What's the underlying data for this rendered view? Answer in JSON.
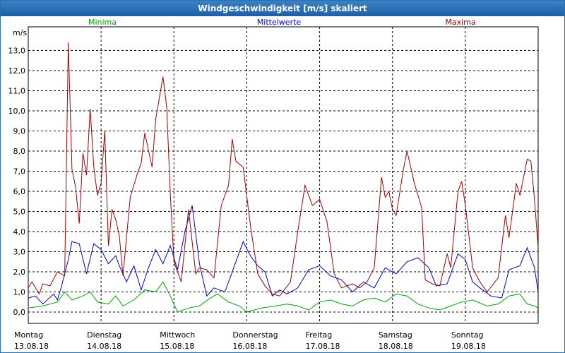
{
  "window": {
    "title": "Windgeschwindigkeit [m/s] skaliert"
  },
  "chart_data": {
    "type": "line",
    "title": "Windgeschwindigkeit [m/s] skaliert",
    "ylabel": "m/s",
    "ylim": [
      -0.5,
      14.0
    ],
    "yticks": [
      "0,0",
      "1,0",
      "2,0",
      "3,0",
      "4,0",
      "5,0",
      "6,0",
      "7,0",
      "8,0",
      "9,0",
      "10,0",
      "11,0",
      "12,0",
      "13,0"
    ],
    "days": [
      {
        "name": "Montag",
        "date": "13.08.18"
      },
      {
        "name": "Dienstag",
        "date": "14.08.18"
      },
      {
        "name": "Mittwoch",
        "date": "15.08.18"
      },
      {
        "name": "Donnerstag",
        "date": "16.08.18"
      },
      {
        "name": "Freitag",
        "date": "17.08.18"
      },
      {
        "name": "Samstag",
        "date": "18.08.18"
      },
      {
        "name": "Sonntag",
        "date": "19.08.18"
      }
    ],
    "xlim": [
      0,
      7.0
    ],
    "series": [
      {
        "name": "Minima",
        "color": "#00a000",
        "points": [
          [
            0.0,
            0.2
          ],
          [
            0.2,
            0.3
          ],
          [
            0.4,
            0.5
          ],
          [
            0.5,
            1.0
          ],
          [
            0.6,
            0.6
          ],
          [
            0.75,
            0.8
          ],
          [
            0.85,
            1.0
          ],
          [
            0.95,
            0.5
          ],
          [
            1.1,
            0.4
          ],
          [
            1.2,
            0.8
          ],
          [
            1.3,
            0.3
          ],
          [
            1.45,
            0.6
          ],
          [
            1.6,
            1.1
          ],
          [
            1.75,
            1.0
          ],
          [
            1.85,
            1.5
          ],
          [
            1.95,
            0.8
          ],
          [
            2.05,
            0.0
          ],
          [
            2.2,
            0.2
          ],
          [
            2.35,
            0.3
          ],
          [
            2.5,
            0.7
          ],
          [
            2.6,
            0.9
          ],
          [
            2.75,
            0.5
          ],
          [
            2.9,
            0.3
          ],
          [
            3.0,
            0.0
          ],
          [
            3.2,
            0.2
          ],
          [
            3.4,
            0.3
          ],
          [
            3.55,
            0.4
          ],
          [
            3.7,
            0.3
          ],
          [
            3.85,
            0.1
          ],
          [
            4.0,
            0.5
          ],
          [
            4.15,
            0.6
          ],
          [
            4.3,
            0.4
          ],
          [
            4.45,
            0.3
          ],
          [
            4.6,
            0.6
          ],
          [
            4.75,
            0.7
          ],
          [
            4.9,
            0.5
          ],
          [
            5.05,
            0.9
          ],
          [
            5.2,
            0.8
          ],
          [
            5.35,
            0.4
          ],
          [
            5.5,
            0.2
          ],
          [
            5.65,
            0.1
          ],
          [
            5.8,
            0.3
          ],
          [
            5.95,
            0.5
          ],
          [
            6.1,
            0.6
          ],
          [
            6.3,
            0.3
          ],
          [
            6.45,
            0.4
          ],
          [
            6.6,
            0.8
          ],
          [
            6.75,
            0.9
          ],
          [
            6.85,
            0.4
          ],
          [
            6.95,
            0.3
          ],
          [
            7.0,
            0.2
          ]
        ]
      },
      {
        "name": "Mittelwerte",
        "color": "#0000c0",
        "points": [
          [
            0.0,
            0.7
          ],
          [
            0.1,
            0.8
          ],
          [
            0.2,
            0.4
          ],
          [
            0.35,
            0.9
          ],
          [
            0.4,
            0.6
          ],
          [
            0.45,
            1.2
          ],
          [
            0.55,
            2.6
          ],
          [
            0.6,
            3.5
          ],
          [
            0.7,
            3.4
          ],
          [
            0.8,
            1.9
          ],
          [
            0.9,
            3.4
          ],
          [
            1.0,
            3.1
          ],
          [
            1.1,
            2.4
          ],
          [
            1.2,
            2.8
          ],
          [
            1.25,
            2.3
          ],
          [
            1.35,
            1.5
          ],
          [
            1.45,
            2.3
          ],
          [
            1.55,
            1.1
          ],
          [
            1.65,
            2.2
          ],
          [
            1.75,
            3.1
          ],
          [
            1.85,
            2.4
          ],
          [
            1.95,
            3.3
          ],
          [
            2.05,
            2.1
          ],
          [
            2.15,
            4.0
          ],
          [
            2.25,
            5.3
          ],
          [
            2.35,
            2.4
          ],
          [
            2.45,
            0.8
          ],
          [
            2.55,
            1.2
          ],
          [
            2.7,
            1.0
          ],
          [
            2.8,
            2.0
          ],
          [
            2.95,
            3.5
          ],
          [
            3.05,
            2.8
          ],
          [
            3.15,
            2.3
          ],
          [
            3.25,
            2.0
          ],
          [
            3.35,
            0.8
          ],
          [
            3.45,
            1.1
          ],
          [
            3.55,
            0.9
          ],
          [
            3.7,
            1.2
          ],
          [
            3.85,
            2.1
          ],
          [
            4.0,
            2.3
          ],
          [
            4.15,
            1.8
          ],
          [
            4.3,
            1.6
          ],
          [
            4.45,
            1.0
          ],
          [
            4.6,
            1.5
          ],
          [
            4.75,
            1.2
          ],
          [
            4.9,
            2.2
          ],
          [
            5.05,
            1.9
          ],
          [
            5.2,
            2.5
          ],
          [
            5.35,
            2.7
          ],
          [
            5.5,
            2.2
          ],
          [
            5.6,
            1.3
          ],
          [
            5.75,
            1.4
          ],
          [
            5.9,
            2.9
          ],
          [
            6.0,
            2.6
          ],
          [
            6.1,
            1.5
          ],
          [
            6.2,
            1.2
          ],
          [
            6.35,
            0.8
          ],
          [
            6.5,
            0.7
          ],
          [
            6.6,
            2.1
          ],
          [
            6.75,
            2.3
          ],
          [
            6.85,
            3.2
          ],
          [
            6.95,
            2.2
          ],
          [
            7.0,
            1.0
          ]
        ]
      },
      {
        "name": "Maxima",
        "color": "#a00000",
        "points": [
          [
            0.0,
            1.2
          ],
          [
            0.05,
            1.5
          ],
          [
            0.1,
            1.2
          ],
          [
            0.15,
            0.9
          ],
          [
            0.2,
            1.4
          ],
          [
            0.3,
            1.3
          ],
          [
            0.4,
            2.0
          ],
          [
            0.5,
            1.8
          ],
          [
            0.55,
            13.4
          ],
          [
            0.6,
            7.1
          ],
          [
            0.65,
            6.2
          ],
          [
            0.7,
            4.4
          ],
          [
            0.75,
            7.9
          ],
          [
            0.8,
            6.8
          ],
          [
            0.85,
            10.1
          ],
          [
            0.9,
            7.2
          ],
          [
            0.95,
            5.8
          ],
          [
            1.0,
            6.4
          ],
          [
            1.05,
            9.0
          ],
          [
            1.1,
            3.3
          ],
          [
            1.15,
            5.1
          ],
          [
            1.2,
            4.6
          ],
          [
            1.25,
            3.8
          ],
          [
            1.3,
            1.8
          ],
          [
            1.4,
            5.7
          ],
          [
            1.5,
            6.9
          ],
          [
            1.55,
            7.4
          ],
          [
            1.6,
            8.9
          ],
          [
            1.7,
            7.2
          ],
          [
            1.75,
            9.6
          ],
          [
            1.85,
            11.7
          ],
          [
            1.9,
            10.2
          ],
          [
            1.95,
            5.9
          ],
          [
            2.0,
            2.5
          ],
          [
            2.1,
            1.5
          ],
          [
            2.2,
            5.1
          ],
          [
            2.3,
            1.9
          ],
          [
            2.35,
            2.2
          ],
          [
            2.45,
            2.1
          ],
          [
            2.55,
            1.7
          ],
          [
            2.65,
            5.3
          ],
          [
            2.75,
            6.3
          ],
          [
            2.8,
            8.6
          ],
          [
            2.85,
            7.5
          ],
          [
            2.95,
            7.2
          ],
          [
            3.05,
            4.3
          ],
          [
            3.15,
            1.9
          ],
          [
            3.25,
            1.3
          ],
          [
            3.35,
            0.9
          ],
          [
            3.45,
            0.8
          ],
          [
            3.6,
            1.5
          ],
          [
            3.7,
            4.0
          ],
          [
            3.8,
            6.3
          ],
          [
            3.9,
            5.3
          ],
          [
            4.0,
            5.6
          ],
          [
            4.1,
            4.5
          ],
          [
            4.2,
            1.9
          ],
          [
            4.3,
            1.2
          ],
          [
            4.45,
            1.4
          ],
          [
            4.55,
            1.2
          ],
          [
            4.65,
            1.5
          ],
          [
            4.75,
            2.2
          ],
          [
            4.85,
            6.7
          ],
          [
            4.9,
            5.7
          ],
          [
            4.95,
            6.0
          ],
          [
            5.0,
            5.1
          ],
          [
            5.05,
            4.8
          ],
          [
            5.15,
            7.1
          ],
          [
            5.2,
            8.0
          ],
          [
            5.3,
            6.4
          ],
          [
            5.4,
            5.2
          ],
          [
            5.45,
            1.6
          ],
          [
            5.55,
            1.4
          ],
          [
            5.65,
            1.3
          ],
          [
            5.75,
            2.9
          ],
          [
            5.8,
            2.2
          ],
          [
            5.9,
            6.0
          ],
          [
            5.95,
            6.5
          ],
          [
            6.0,
            5.3
          ],
          [
            6.1,
            2.2
          ],
          [
            6.2,
            1.5
          ],
          [
            6.3,
            1.0
          ],
          [
            6.45,
            1.7
          ],
          [
            6.55,
            4.8
          ],
          [
            6.6,
            3.7
          ],
          [
            6.7,
            6.4
          ],
          [
            6.75,
            5.8
          ],
          [
            6.85,
            7.6
          ],
          [
            6.9,
            7.5
          ],
          [
            6.95,
            5.6
          ],
          [
            7.0,
            3.2
          ]
        ]
      }
    ]
  }
}
